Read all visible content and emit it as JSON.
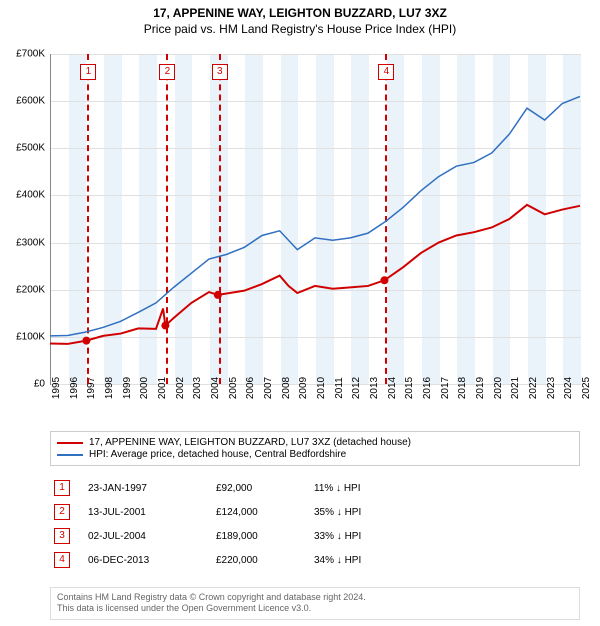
{
  "title": "17, APPENINE WAY, LEIGHTON BUZZARD, LU7 3XZ",
  "subtitle": "Price paid vs. HM Land Registry's House Price Index (HPI)",
  "chart": {
    "type": "line",
    "background_color": "#ffffff",
    "shade_color": "#eaf2fa",
    "grid_color": "#e0e0e0",
    "x": {
      "min": 1995,
      "max": 2025,
      "ticks": [
        1995,
        1996,
        1997,
        1998,
        1999,
        2000,
        2001,
        2002,
        2003,
        2004,
        2005,
        2006,
        2007,
        2008,
        2009,
        2010,
        2011,
        2012,
        2013,
        2014,
        2015,
        2016,
        2017,
        2018,
        2019,
        2020,
        2021,
        2022,
        2023,
        2024,
        2025
      ],
      "label_fontsize": 10
    },
    "y": {
      "min": 0,
      "max": 700000,
      "ticks": [
        0,
        100000,
        200000,
        300000,
        400000,
        500000,
        600000,
        700000
      ],
      "tick_labels": [
        "£0",
        "£100K",
        "£200K",
        "£300K",
        "£400K",
        "£500K",
        "£600K",
        "£700K"
      ],
      "label_fontsize": 10
    },
    "series": [
      {
        "id": "price_paid",
        "label": "17, APPENINE WAY, LEIGHTON BUZZARD, LU7 3XZ (detached house)",
        "color": "#d00000",
        "line_width": 2,
        "markers": [
          {
            "x": 1997.06,
            "y": 92000
          },
          {
            "x": 2001.53,
            "y": 124000
          },
          {
            "x": 2004.5,
            "y": 189000
          },
          {
            "x": 2013.93,
            "y": 220000
          }
        ],
        "points": [
          {
            "x": 1995.0,
            "y": 86000
          },
          {
            "x": 1996.0,
            "y": 85000
          },
          {
            "x": 1997.06,
            "y": 92000
          },
          {
            "x": 1998.0,
            "y": 102000
          },
          {
            "x": 1999.0,
            "y": 107000
          },
          {
            "x": 2000.0,
            "y": 118000
          },
          {
            "x": 2001.0,
            "y": 117000
          },
          {
            "x": 2001.4,
            "y": 160000
          },
          {
            "x": 2001.53,
            "y": 124000
          },
          {
            "x": 2002.0,
            "y": 140000
          },
          {
            "x": 2003.0,
            "y": 172000
          },
          {
            "x": 2004.0,
            "y": 195000
          },
          {
            "x": 2004.5,
            "y": 189000
          },
          {
            "x": 2005.0,
            "y": 192000
          },
          {
            "x": 2006.0,
            "y": 198000
          },
          {
            "x": 2007.0,
            "y": 212000
          },
          {
            "x": 2008.0,
            "y": 230000
          },
          {
            "x": 2008.5,
            "y": 208000
          },
          {
            "x": 2009.0,
            "y": 193000
          },
          {
            "x": 2010.0,
            "y": 208000
          },
          {
            "x": 2011.0,
            "y": 202000
          },
          {
            "x": 2012.0,
            "y": 205000
          },
          {
            "x": 2013.0,
            "y": 208000
          },
          {
            "x": 2013.93,
            "y": 220000
          },
          {
            "x": 2015.0,
            "y": 248000
          },
          {
            "x": 2016.0,
            "y": 278000
          },
          {
            "x": 2017.0,
            "y": 300000
          },
          {
            "x": 2018.0,
            "y": 315000
          },
          {
            "x": 2019.0,
            "y": 322000
          },
          {
            "x": 2020.0,
            "y": 332000
          },
          {
            "x": 2021.0,
            "y": 350000
          },
          {
            "x": 2022.0,
            "y": 380000
          },
          {
            "x": 2023.0,
            "y": 360000
          },
          {
            "x": 2024.0,
            "y": 370000
          },
          {
            "x": 2025.0,
            "y": 378000
          }
        ]
      },
      {
        "id": "hpi",
        "label": "HPI: Average price, detached house, Central Bedfordshire",
        "color": "#3070c0",
        "line_width": 1.5,
        "points": [
          {
            "x": 1995.0,
            "y": 102000
          },
          {
            "x": 1996.0,
            "y": 103000
          },
          {
            "x": 1997.0,
            "y": 110000
          },
          {
            "x": 1998.0,
            "y": 120000
          },
          {
            "x": 1999.0,
            "y": 133000
          },
          {
            "x": 2000.0,
            "y": 152000
          },
          {
            "x": 2001.0,
            "y": 172000
          },
          {
            "x": 2002.0,
            "y": 205000
          },
          {
            "x": 2003.0,
            "y": 235000
          },
          {
            "x": 2004.0,
            "y": 265000
          },
          {
            "x": 2005.0,
            "y": 275000
          },
          {
            "x": 2006.0,
            "y": 290000
          },
          {
            "x": 2007.0,
            "y": 315000
          },
          {
            "x": 2008.0,
            "y": 325000
          },
          {
            "x": 2009.0,
            "y": 285000
          },
          {
            "x": 2010.0,
            "y": 310000
          },
          {
            "x": 2011.0,
            "y": 305000
          },
          {
            "x": 2012.0,
            "y": 310000
          },
          {
            "x": 2013.0,
            "y": 320000
          },
          {
            "x": 2014.0,
            "y": 345000
          },
          {
            "x": 2015.0,
            "y": 375000
          },
          {
            "x": 2016.0,
            "y": 410000
          },
          {
            "x": 2017.0,
            "y": 440000
          },
          {
            "x": 2018.0,
            "y": 462000
          },
          {
            "x": 2019.0,
            "y": 470000
          },
          {
            "x": 2020.0,
            "y": 490000
          },
          {
            "x": 2021.0,
            "y": 530000
          },
          {
            "x": 2022.0,
            "y": 585000
          },
          {
            "x": 2023.0,
            "y": 560000
          },
          {
            "x": 2024.0,
            "y": 595000
          },
          {
            "x": 2025.0,
            "y": 610000
          }
        ]
      }
    ],
    "events": [
      {
        "n": "1",
        "x": 1997.06,
        "date": "23-JAN-1997",
        "price": "£92,000",
        "diff": "11% ↓ HPI"
      },
      {
        "n": "2",
        "x": 2001.53,
        "date": "13-JUL-2001",
        "price": "£124,000",
        "diff": "35% ↓ HPI"
      },
      {
        "n": "3",
        "x": 2004.5,
        "date": "02-JUL-2004",
        "price": "£189,000",
        "diff": "33% ↓ HPI"
      },
      {
        "n": "4",
        "x": 2013.93,
        "date": "06-DEC-2013",
        "price": "£220,000",
        "diff": "34% ↓ HPI"
      }
    ]
  },
  "footer": {
    "line1": "Contains HM Land Registry data © Crown copyright and database right 2024.",
    "line2": "This data is licensed under the Open Government Licence v3.0."
  }
}
